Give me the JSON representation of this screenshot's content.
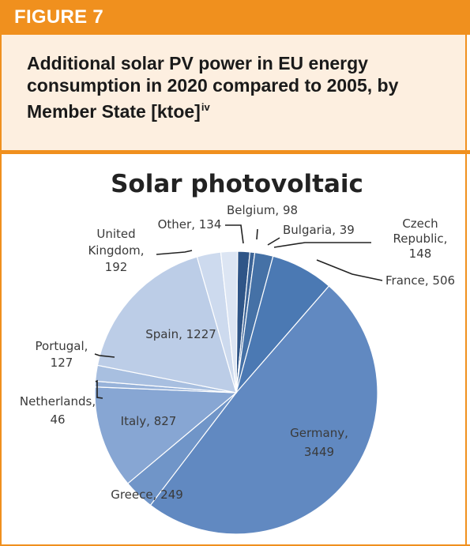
{
  "figure_tab": "FIGURE 7",
  "caption": {
    "text": "Additional solar PV power in EU energy consumption in 2020 compared to 2005, by Member State [ktoe]",
    "superscript": "iv"
  },
  "chart_data": {
    "type": "pie",
    "title": "Solar photovoltaic",
    "unit": "ktoe",
    "slices": [
      {
        "name": "Belgium",
        "value": 98,
        "label": [
          "Belgium, 98"
        ],
        "color": "#2f5587"
      },
      {
        "name": "Bulgaria",
        "value": 39,
        "label": [
          "Bulgaria, 39"
        ],
        "color": "#3c6497"
      },
      {
        "name": "Czech Republic",
        "value": 148,
        "label": [
          "Czech",
          "Republic,",
          "148"
        ],
        "color": "#4571a6"
      },
      {
        "name": "France",
        "value": 506,
        "label": [
          "France, 506"
        ],
        "color": "#4b79b3"
      },
      {
        "name": "Germany",
        "value": 3449,
        "label": [
          "Germany,",
          "3449"
        ],
        "color": "#6189c1"
      },
      {
        "name": "Greece",
        "value": 249,
        "label": [
          "Greece, 249"
        ],
        "color": "#7095c8"
      },
      {
        "name": "Italy",
        "value": 827,
        "label": [
          "Italy, 827"
        ],
        "color": "#87a6d3"
      },
      {
        "name": "Netherlands",
        "value": 46,
        "label": [
          "Netherlands,",
          "46"
        ],
        "color": "#97b2d9"
      },
      {
        "name": "Portugal",
        "value": 127,
        "label": [
          "Portugal,",
          "127"
        ],
        "color": "#a8bfe0"
      },
      {
        "name": "Spain",
        "value": 1227,
        "label": [
          "Spain, 1227"
        ],
        "color": "#bccde7"
      },
      {
        "name": "United Kingdom",
        "value": 192,
        "label": [
          "United",
          "Kingdom,",
          "192"
        ],
        "color": "#cddaee"
      },
      {
        "name": "Other",
        "value": 134,
        "label": [
          "Other, 134"
        ],
        "color": "#dce5f3"
      }
    ]
  }
}
